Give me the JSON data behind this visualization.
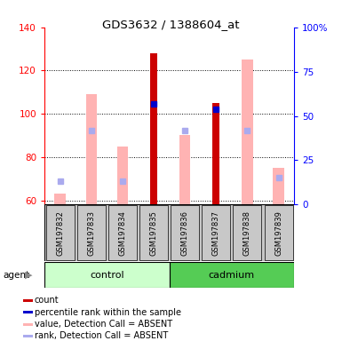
{
  "title": "GDS3632 / 1388604_at",
  "samples": [
    "GSM197832",
    "GSM197833",
    "GSM197834",
    "GSM197835",
    "GSM197836",
    "GSM197837",
    "GSM197838",
    "GSM197839"
  ],
  "ylim_left": [
    58,
    140
  ],
  "ylim_right": [
    0,
    100
  ],
  "yticks_left": [
    60,
    80,
    100,
    120,
    140
  ],
  "yticks_right": [
    0,
    25,
    50,
    75,
    100
  ],
  "count_values": [
    null,
    null,
    null,
    128,
    null,
    105,
    null,
    null
  ],
  "count_color": "#cc0000",
  "percentile_values_pct": [
    null,
    null,
    null,
    57,
    null,
    54,
    null,
    null
  ],
  "percentile_color": "#0000cc",
  "absent_value_bars": [
    63,
    109,
    85,
    null,
    90,
    null,
    125,
    75
  ],
  "absent_value_color": "#ffb3b3",
  "absent_rank_pct": [
    13,
    42,
    13,
    null,
    42,
    null,
    42,
    15
  ],
  "absent_rank_color": "#aaaaee",
  "group_colors_control": "#ccffcc",
  "group_colors_cadmium": "#55cc55",
  "legend_labels": [
    "count",
    "percentile rank within the sample",
    "value, Detection Call = ABSENT",
    "rank, Detection Call = ABSENT"
  ],
  "legend_colors": [
    "#cc0000",
    "#0000cc",
    "#ffb3b3",
    "#aaaaee"
  ],
  "figsize": [
    3.85,
    3.84
  ],
  "dpi": 100
}
